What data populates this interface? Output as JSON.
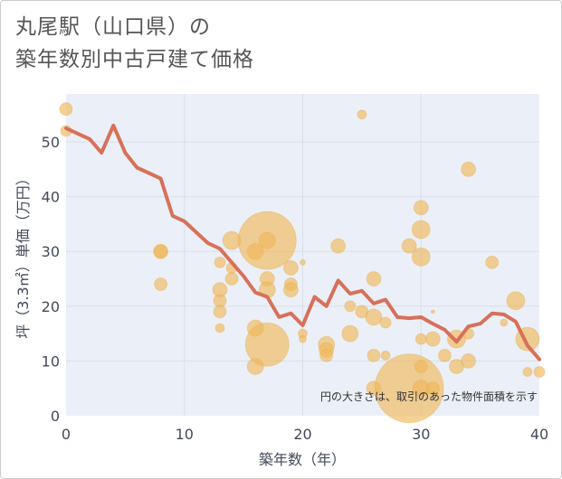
{
  "chart_data": {
    "type": "scatter",
    "title_lines": [
      "丸尾駅（山口県）の",
      "築年数別中古戸建て価格"
    ],
    "xlabel": "築年数（年）",
    "ylabel": "坪（3.3㎡）単価（万円）",
    "xlim": [
      0,
      40
    ],
    "ylim": [
      0,
      58
    ],
    "x_ticks": [
      0,
      10,
      20,
      30,
      40
    ],
    "y_ticks": [
      0,
      10,
      20,
      30,
      40,
      50
    ],
    "note": "円の大きさは、取引のあった物件面積を示す",
    "colors": {
      "bubble": "#f0b95a",
      "line": "#d87059",
      "grid": "#d8dfe8",
      "plot_bg": "#ebf0f8"
    },
    "bubbles": [
      {
        "x": 0,
        "y": 56,
        "r": 7
      },
      {
        "x": 0,
        "y": 52,
        "r": 6
      },
      {
        "x": 8,
        "y": 30,
        "r": 8
      },
      {
        "x": 8,
        "y": 30,
        "r": 7
      },
      {
        "x": 8,
        "y": 24,
        "r": 7
      },
      {
        "x": 13,
        "y": 28,
        "r": 6
      },
      {
        "x": 13,
        "y": 23,
        "r": 8
      },
      {
        "x": 13,
        "y": 21,
        "r": 7
      },
      {
        "x": 13,
        "y": 19,
        "r": 7
      },
      {
        "x": 13,
        "y": 16,
        "r": 5
      },
      {
        "x": 14,
        "y": 32,
        "r": 10
      },
      {
        "x": 14,
        "y": 27,
        "r": 6
      },
      {
        "x": 14,
        "y": 25,
        "r": 7
      },
      {
        "x": 16,
        "y": 30,
        "r": 9
      },
      {
        "x": 16,
        "y": 16,
        "r": 9
      },
      {
        "x": 16,
        "y": 9,
        "r": 9
      },
      {
        "x": 17,
        "y": 32,
        "r": 32
      },
      {
        "x": 17,
        "y": 32,
        "r": 9
      },
      {
        "x": 17,
        "y": 25,
        "r": 8
      },
      {
        "x": 17,
        "y": 23,
        "r": 9
      },
      {
        "x": 17,
        "y": 13,
        "r": 24
      },
      {
        "x": 19,
        "y": 27,
        "r": 8
      },
      {
        "x": 19,
        "y": 24,
        "r": 7
      },
      {
        "x": 19,
        "y": 23,
        "r": 8
      },
      {
        "x": 20,
        "y": 28,
        "r": 3
      },
      {
        "x": 20,
        "y": 15,
        "r": 5
      },
      {
        "x": 20,
        "y": 14,
        "r": 4
      },
      {
        "x": 22,
        "y": 13,
        "r": 9
      },
      {
        "x": 22,
        "y": 12,
        "r": 8
      },
      {
        "x": 22,
        "y": 11,
        "r": 7
      },
      {
        "x": 23,
        "y": 31,
        "r": 8
      },
      {
        "x": 24,
        "y": 20,
        "r": 6
      },
      {
        "x": 24,
        "y": 15,
        "r": 9
      },
      {
        "x": 25,
        "y": 55,
        "r": 5
      },
      {
        "x": 25,
        "y": 19,
        "r": 7
      },
      {
        "x": 26,
        "y": 25,
        "r": 8
      },
      {
        "x": 26,
        "y": 18,
        "r": 9
      },
      {
        "x": 26,
        "y": 11,
        "r": 7
      },
      {
        "x": 26,
        "y": 5,
        "r": 8
      },
      {
        "x": 27,
        "y": 17,
        "r": 6
      },
      {
        "x": 27,
        "y": 11,
        "r": 5
      },
      {
        "x": 29,
        "y": 31,
        "r": 8
      },
      {
        "x": 29,
        "y": 5,
        "r": 38
      },
      {
        "x": 30,
        "y": 38,
        "r": 8
      },
      {
        "x": 30,
        "y": 34,
        "r": 10
      },
      {
        "x": 30,
        "y": 29,
        "r": 10
      },
      {
        "x": 30,
        "y": 14,
        "r": 6
      },
      {
        "x": 30,
        "y": 9,
        "r": 7
      },
      {
        "x": 30,
        "y": 5,
        "r": 9
      },
      {
        "x": 31,
        "y": 14,
        "r": 8
      },
      {
        "x": 31,
        "y": 5,
        "r": 7
      },
      {
        "x": 31,
        "y": 19,
        "r": 2
      },
      {
        "x": 32,
        "y": 11,
        "r": 7
      },
      {
        "x": 33,
        "y": 14,
        "r": 10
      },
      {
        "x": 33,
        "y": 9,
        "r": 8
      },
      {
        "x": 34,
        "y": 45,
        "r": 8
      },
      {
        "x": 34,
        "y": 15,
        "r": 6
      },
      {
        "x": 34,
        "y": 10,
        "r": 8
      },
      {
        "x": 36,
        "y": 28,
        "r": 7
      },
      {
        "x": 37,
        "y": 17,
        "r": 4
      },
      {
        "x": 38,
        "y": 21,
        "r": 10
      },
      {
        "x": 39,
        "y": 14,
        "r": 13
      },
      {
        "x": 39,
        "y": 8,
        "r": 5
      },
      {
        "x": 40,
        "y": 8,
        "r": 6
      }
    ],
    "line": {
      "x": [
        0,
        1,
        2,
        3,
        4,
        5,
        6,
        7,
        8,
        9,
        10,
        11,
        12,
        13,
        14,
        15,
        16,
        17,
        18,
        19,
        20,
        21,
        22,
        23,
        24,
        25,
        26,
        27,
        28,
        29,
        30,
        31,
        32,
        33,
        34,
        35,
        36,
        37,
        38,
        39,
        40
      ],
      "y": [
        52.5,
        51.5,
        50.5,
        48,
        53,
        48,
        45.3,
        44.3,
        43.3,
        36.5,
        35.5,
        33.5,
        31.5,
        30.5,
        28,
        25.5,
        22.5,
        21.7,
        18,
        18.7,
        16.5,
        21.7,
        20,
        24.7,
        22.3,
        22.8,
        20.5,
        21.2,
        18,
        17.8,
        18,
        16.8,
        15.7,
        13.5,
        16.3,
        16.8,
        18.7,
        18.5,
        17.2,
        12.8,
        10.3
      ]
    }
  }
}
